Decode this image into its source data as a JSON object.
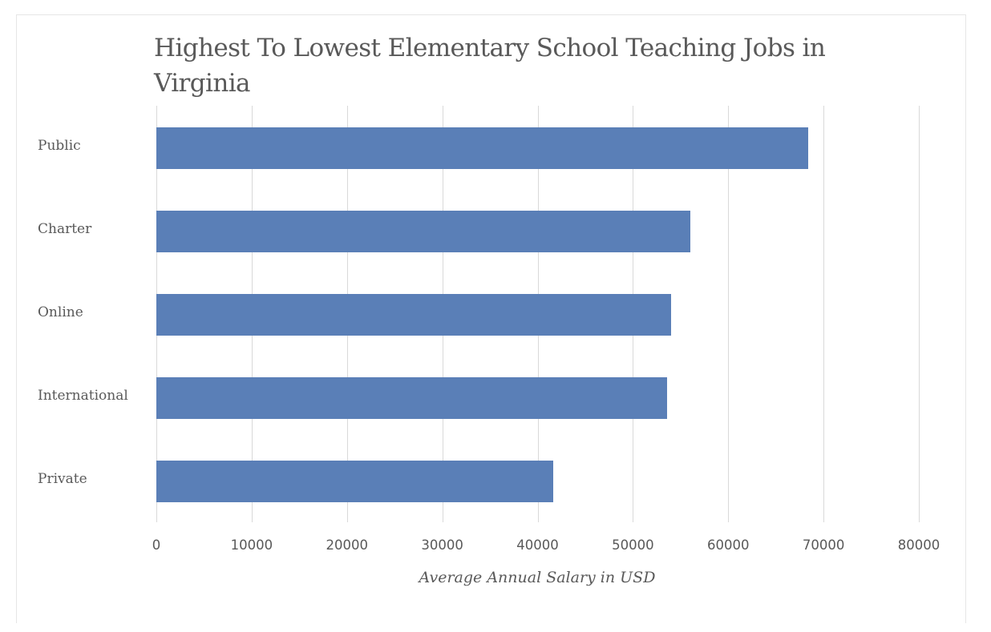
{
  "chart_data": {
    "type": "bar",
    "orientation": "horizontal",
    "title": "Highest To Lowest Elementary  School Teaching Jobs in Virginia",
    "categories": [
      "Public",
      "Charter",
      "Online",
      "International",
      "Private"
    ],
    "values": [
      68400,
      56000,
      54000,
      53600,
      41600
    ],
    "xlabel": "Average Annual Salary in USD",
    "ylabel": "",
    "xlim": [
      0,
      80000
    ],
    "x_ticks": [
      "0",
      "10000",
      "20000",
      "30000",
      "40000",
      "50000",
      "60000",
      "70000",
      "80000"
    ],
    "grid": true,
    "legend": null,
    "bar_color": "#5a7fb7"
  }
}
